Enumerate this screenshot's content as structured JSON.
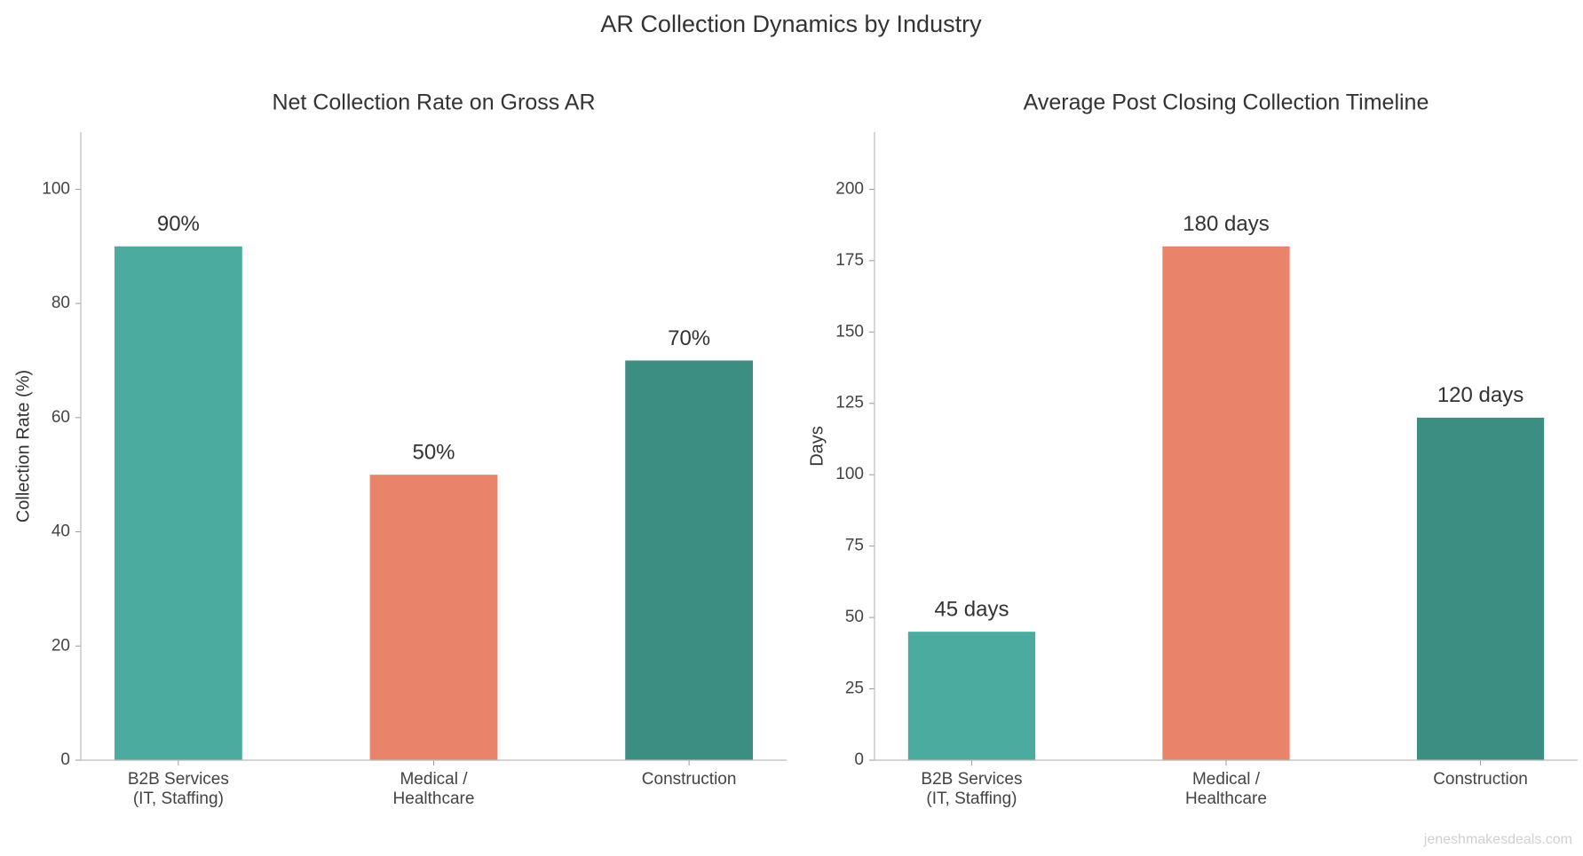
{
  "title": "AR Collection Dynamics by Industry",
  "watermark": "jeneshmakesdeals.com",
  "chart_data": [
    {
      "type": "bar",
      "title": "Net Collection Rate on Gross AR",
      "y_label": "Collection Rate (%)",
      "categories": [
        "B2B Services\n(IT, Staffing)",
        "Medical /\nHealthcare",
        "Construction"
      ],
      "values": [
        90,
        50,
        70
      ],
      "value_labels": [
        "90%",
        "50%",
        "70%"
      ],
      "colors": [
        "#4aab9e",
        "#e9846b",
        "#3c8d82"
      ],
      "ylim": [
        0,
        110
      ],
      "yticks": [
        0,
        20,
        40,
        60,
        80,
        100
      ],
      "grid": false
    },
    {
      "type": "bar",
      "title": "Average Post Closing Collection Timeline",
      "y_label": "Days",
      "categories": [
        "B2B Services\n(IT, Staffing)",
        "Medical /\nHealthcare",
        "Construction"
      ],
      "values": [
        45,
        180,
        120
      ],
      "value_labels": [
        "45 days",
        "180 days",
        "120 days"
      ],
      "colors": [
        "#4aab9e",
        "#e9846b",
        "#3c8d82"
      ],
      "ylim": [
        0,
        220
      ],
      "yticks": [
        0,
        25,
        50,
        75,
        100,
        125,
        150,
        175,
        200
      ],
      "grid": false
    }
  ]
}
